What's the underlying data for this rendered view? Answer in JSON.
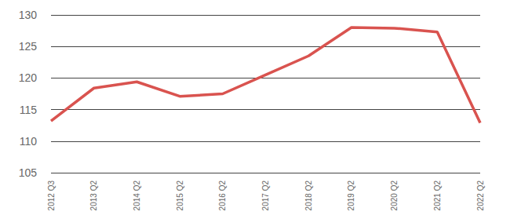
{
  "chart_data": {
    "type": "line",
    "categories": [
      "2012 Q3",
      "2013 Q2",
      "2014 Q2",
      "2015 Q2",
      "2016 Q2",
      "2017 Q2",
      "2018 Q2",
      "2019 Q2",
      "2020 Q2",
      "2021 Q2",
      "2022 Q2"
    ],
    "values": [
      113.2,
      118.4,
      119.4,
      117.1,
      117.5,
      120.5,
      123.5,
      128.0,
      127.9,
      127.3,
      112.9
    ],
    "color": "#d9534f",
    "ylim": [
      105,
      130
    ],
    "yticks": [
      105,
      110,
      115,
      120,
      125,
      130
    ],
    "grid": true
  }
}
